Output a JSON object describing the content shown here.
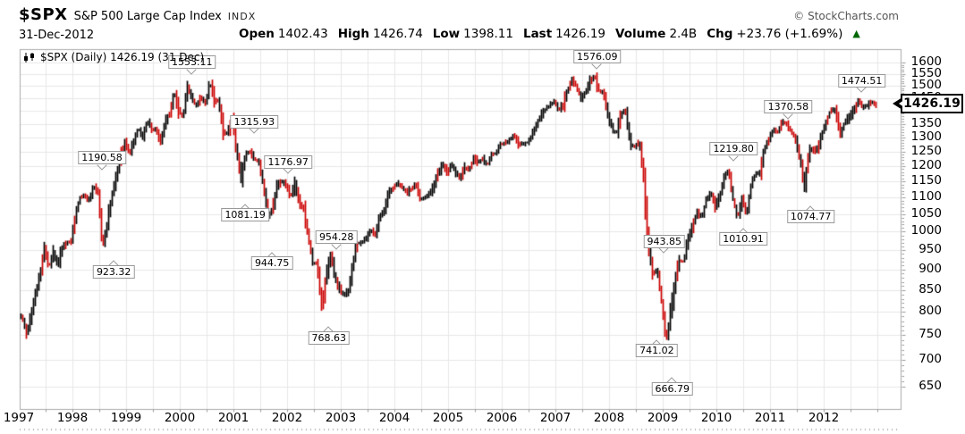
{
  "header": {
    "symbol": "$SPX",
    "name": "S&P 500 Large Cap Index",
    "exchange": "INDX",
    "date": "31-Dec-2012",
    "credit": "© StockCharts.com",
    "quote_fields": [
      {
        "label": "Open",
        "value": "1402.43"
      },
      {
        "label": "High",
        "value": "1426.74"
      },
      {
        "label": "Low",
        "value": "1398.11"
      },
      {
        "label": "Last",
        "value": "1426.19"
      },
      {
        "label": "Volume",
        "value": "2.4B"
      },
      {
        "label": "Chg",
        "value": "+23.76 (+1.69%)"
      }
    ],
    "chg_up_symbol": "▲",
    "chg_up_color": "#006600"
  },
  "legend": {
    "icon": "candlestick-icon",
    "text": "$SPX (Daily) 1426.19 (31 Dec)"
  },
  "last_price_box": {
    "value": "1426.19",
    "price": 1426.19
  },
  "chart_data": {
    "type": "candlestick",
    "title": "$SPX (Daily)",
    "y_scale": "log",
    "grid": true,
    "ylim": [
      611,
      1661
    ],
    "xlim": [
      1997.0,
      2013.45
    ],
    "x_tick_years": [
      1997,
      1998,
      1999,
      2000,
      2001,
      2002,
      2003,
      2004,
      2005,
      2006,
      2007,
      2008,
      2009,
      2010,
      2011,
      2012
    ],
    "y_ticks": [
      650,
      700,
      750,
      800,
      850,
      900,
      950,
      1000,
      1050,
      1100,
      1150,
      1200,
      1250,
      1300,
      1350,
      1400,
      1450,
      1500,
      1550,
      1600
    ],
    "monthly_close": {
      "start_year": 1997,
      "values": [
        786,
        791,
        757,
        801,
        848,
        885,
        954,
        899,
        947,
        915,
        955,
        970,
        980,
        1049,
        1102,
        1112,
        1091,
        1134,
        1121,
        957,
        1017,
        1099,
        1164,
        1229,
        1280,
        1238,
        1286,
        1335,
        1302,
        1373,
        1329,
        1320,
        1283,
        1363,
        1389,
        1469,
        1394,
        1366,
        1499,
        1452,
        1421,
        1455,
        1431,
        1518,
        1437,
        1429,
        1315,
        1320,
        1366,
        1240,
        1160,
        1249,
        1256,
        1224,
        1211,
        1134,
        1041,
        1060,
        1139,
        1148,
        1130,
        1107,
        1147,
        1077,
        1067,
        990,
        912,
        916,
        815,
        886,
        936,
        880,
        856,
        841,
        848,
        917,
        964,
        975,
        990,
        1008,
        996,
        1051,
        1058,
        1112,
        1131,
        1145,
        1126,
        1107,
        1121,
        1141,
        1102,
        1104,
        1115,
        1130,
        1174,
        1212,
        1181,
        1204,
        1181,
        1157,
        1192,
        1191,
        1234,
        1220,
        1229,
        1207,
        1249,
        1248,
        1280,
        1281,
        1295,
        1311,
        1270,
        1270,
        1277,
        1304,
        1336,
        1378,
        1401,
        1418,
        1438,
        1407,
        1421,
        1482,
        1531,
        1503,
        1455,
        1474,
        1527,
        1549,
        1481,
        1468,
        1379,
        1331,
        1323,
        1386,
        1400,
        1280,
        1267,
        1283,
        1166,
        969,
        896,
        903,
        826,
        735,
        798,
        873,
        919,
        919,
        987,
        1021,
        1057,
        1036,
        1096,
        1115,
        1074,
        1104,
        1169,
        1187,
        1089,
        1031,
        1102,
        1049,
        1141,
        1183,
        1181,
        1258,
        1286,
        1327,
        1326,
        1364,
        1345,
        1321,
        1292,
        1219,
        1131,
        1253,
        1247,
        1258,
        1312,
        1366,
        1408,
        1398,
        1310,
        1362,
        1379,
        1407,
        1441,
        1412,
        1416,
        1426.19
      ]
    },
    "annotations": [
      {
        "label": "1190.58",
        "price": 1190.58,
        "year": 1998.55,
        "side": "above"
      },
      {
        "label": "923.32",
        "price": 923.32,
        "year": 1998.77,
        "side": "below"
      },
      {
        "label": "1553.11",
        "price": 1553.11,
        "year": 2000.23,
        "side": "above"
      },
      {
        "label": "1315.93",
        "price": 1315.93,
        "year": 2001.39,
        "side": "above"
      },
      {
        "label": "1081.19",
        "price": 1081.19,
        "year": 2001.22,
        "side": "below"
      },
      {
        "label": "944.75",
        "price": 944.75,
        "year": 2001.72,
        "side": "below"
      },
      {
        "label": "1176.97",
        "price": 1176.97,
        "year": 2002.02,
        "side": "above"
      },
      {
        "label": "954.28",
        "price": 954.28,
        "year": 2002.92,
        "side": "above"
      },
      {
        "label": "768.63",
        "price": 768.63,
        "year": 2002.78,
        "side": "below"
      },
      {
        "label": "1576.09",
        "price": 1576.09,
        "year": 2007.78,
        "side": "above"
      },
      {
        "label": "943.85",
        "price": 943.85,
        "year": 2009.03,
        "side": "above"
      },
      {
        "label": "741.02",
        "price": 741.02,
        "year": 2008.89,
        "side": "below"
      },
      {
        "label": "666.79",
        "price": 666.79,
        "year": 2009.18,
        "side": "below"
      },
      {
        "label": "1219.80",
        "price": 1219.8,
        "year": 2010.32,
        "side": "above"
      },
      {
        "label": "1010.91",
        "price": 1010.91,
        "year": 2010.5,
        "side": "below"
      },
      {
        "label": "1370.58",
        "price": 1370.58,
        "year": 2011.34,
        "side": "above"
      },
      {
        "label": "1074.77",
        "price": 1074.77,
        "year": 2011.76,
        "side": "below"
      },
      {
        "label": "1474.51",
        "price": 1474.51,
        "year": 2012.71,
        "side": "above"
      }
    ],
    "colors": {
      "candle_up": "#000000",
      "candle_down": "#cc0000",
      "grid": "#e7e7e7",
      "frame": "#aaaaaa",
      "annotation_border": "#999999"
    }
  }
}
